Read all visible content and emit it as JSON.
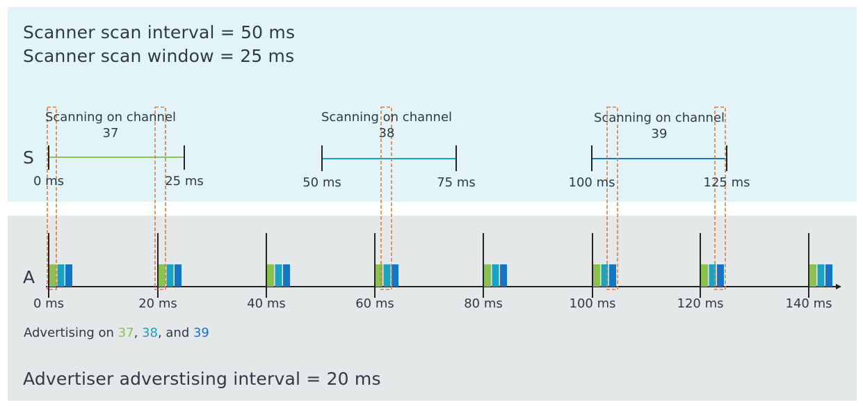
{
  "scanner": {
    "scan_interval_text": "Scanner scan interval = 50 ms",
    "scan_window_text": "Scanner scan window = 25 ms",
    "row_label": "S",
    "channels": [
      {
        "name": "Scanning on channel",
        "number": "37",
        "start_label": "0 ms",
        "end_label": "25 ms",
        "color": "#8cc152"
      },
      {
        "name": "Scanning on channel",
        "number": "38",
        "start_label": "50 ms",
        "end_label": "75 ms",
        "color": "#1aa3c0"
      },
      {
        "name": "Scanning on channel",
        "number": "39",
        "start_label": "100 ms",
        "end_label": "125 ms",
        "color": "#1574c4"
      }
    ]
  },
  "advertiser": {
    "row_label": "A",
    "tick_labels": [
      "0 ms",
      "20 ms",
      "40 ms",
      "60 ms",
      "80 ms",
      "100 ms",
      "120 ms",
      "140 ms"
    ],
    "advertising_prefix": "Advertising on ",
    "channel_37": "37",
    "sep1": ", ",
    "channel_38": "38",
    "sep2": ", and ",
    "channel_39": "39",
    "interval_text": "Advertiser adverstising interval = 20 ms",
    "packet_colors": [
      "#8cc152",
      "#1aa3c0",
      "#1574c4"
    ]
  },
  "colors": {
    "scanner_bg": "#e3f4f8",
    "advertiser_bg": "#e4e8e8",
    "highlight_dash": "#e07b39",
    "axis": "#222222"
  }
}
